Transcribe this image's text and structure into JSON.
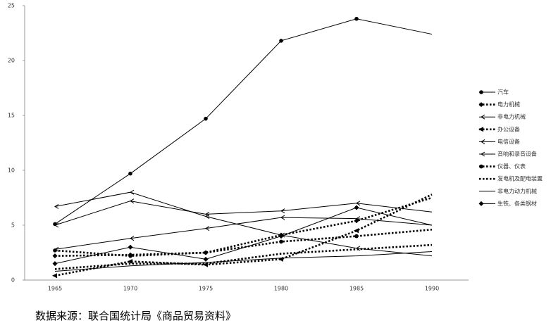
{
  "chart_data": {
    "type": "line",
    "categories": [
      "1965",
      "1970",
      "1975",
      "1980",
      "1985",
      "1990"
    ],
    "ylim": [
      0,
      25
    ],
    "yticks": [
      0,
      5,
      10,
      15,
      20,
      25
    ],
    "series": [
      {
        "name": "汽车",
        "color": "#000000",
        "dashed": false,
        "marker": "circle",
        "values": [
          5.1,
          9.7,
          14.7,
          21.8,
          23.8,
          22.4
        ]
      },
      {
        "name": "电力机械",
        "color": "#000000",
        "dashed": true,
        "marker": "diamond",
        "values": [
          2.2,
          2.3,
          2.5,
          4.1,
          5.4,
          7.5
        ]
      },
      {
        "name": "非电力机械",
        "color": "#000000",
        "dashed": false,
        "marker": "arrow",
        "values": [
          6.7,
          8.0,
          5.8,
          4.1,
          2.9,
          2.2
        ]
      },
      {
        "name": "办公设备",
        "color": "#000000",
        "dashed": true,
        "marker": "triangle",
        "values": [
          0.4,
          1.7,
          1.4,
          1.9,
          4.5,
          7.8
        ]
      },
      {
        "name": "电信设备",
        "color": "#000000",
        "dashed": false,
        "marker": "arrow",
        "values": [
          5.0,
          7.2,
          6.0,
          6.3,
          7.0,
          6.2
        ]
      },
      {
        "name": "音响和录音设备",
        "color": "#000000",
        "dashed": false,
        "marker": "arrow",
        "values": [
          2.8,
          3.8,
          4.7,
          5.7,
          5.6,
          5.0
        ]
      },
      {
        "name": "仪器、仪表",
        "color": "#000000",
        "dashed": true,
        "marker": "circle",
        "values": [
          2.7,
          2.2,
          2.5,
          3.5,
          4.0,
          4.6
        ]
      },
      {
        "name": "发电机及配电装置",
        "color": "#000000",
        "dashed": true,
        "marker": "none",
        "values": [
          1.0,
          1.5,
          1.5,
          2.4,
          2.8,
          3.2
        ]
      },
      {
        "name": "非电力动力机械",
        "color": "#000000",
        "dashed": false,
        "marker": "none",
        "values": [
          0.8,
          1.3,
          1.6,
          2.0,
          2.2,
          2.6
        ]
      },
      {
        "name": "生铁、各类钢材",
        "color": "#000000",
        "dashed": false,
        "marker": "diamond",
        "values": [
          1.5,
          3.0,
          1.9,
          4.0,
          6.6,
          5.0
        ]
      }
    ],
    "source": "数据来源：联合国统计局《商品贸易资料》"
  }
}
